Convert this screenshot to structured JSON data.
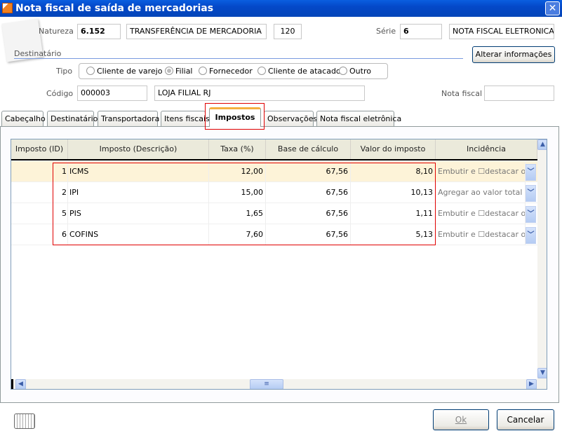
{
  "window": {
    "title": "Nota fiscal de saída de mercadorias",
    "close": "✕"
  },
  "header": {
    "natureza_label": "Natureza",
    "natureza_code": "6.152",
    "natureza_desc": "TRANSFERÊNCIA DE MERCADORIA",
    "natureza_num": "120",
    "serie_label": "Série",
    "serie_value": "6",
    "serie_desc": "NOTA FISCAL ELETRONICA",
    "destinatario_label": "Destinatário",
    "alterar_button": "Alterar informações",
    "tipo_label": "Tipo",
    "tipo_options": [
      {
        "label": "Cliente de varejo",
        "selected": false
      },
      {
        "label": "Filial",
        "selected": true
      },
      {
        "label": "Fornecedor",
        "selected": false
      },
      {
        "label": "Cliente de atacado",
        "selected": false
      },
      {
        "label": "Outro",
        "selected": false
      }
    ],
    "codigo_label": "Código",
    "codigo_value": "000003",
    "codigo_desc": "LOJA FILIAL RJ",
    "nota_fiscal_label": "Nota fiscal",
    "nota_fiscal_value": ""
  },
  "tabs": [
    "Cabeçalho",
    "Destinatário",
    "Transportadora",
    "Itens fiscais",
    "Impostos",
    "Observações",
    "Nota fiscal eletrônica"
  ],
  "active_tab": "Impostos",
  "grid": {
    "columns": [
      "Imposto (ID)",
      "Imposto (Descrição)",
      "Taxa (%)",
      "Base de cálculo",
      "Valor do imposto",
      "Incidência"
    ],
    "rows": [
      {
        "id": "1",
        "desc": "ICMS",
        "taxa": "12,00",
        "base": "67,56",
        "valor": "8,10",
        "incidencia": "Embutir e ☐destacar o va"
      },
      {
        "id": "2",
        "desc": "IPI",
        "taxa": "15,00",
        "base": "67,56",
        "valor": "10,13",
        "incidencia": "Agregar ao valor total da"
      },
      {
        "id": "5",
        "desc": "PIS",
        "taxa": "1,65",
        "base": "67,56",
        "valor": "1,11",
        "incidencia": "Embutir e ☐destacar o va"
      },
      {
        "id": "6",
        "desc": "COFINS",
        "taxa": "7,60",
        "base": "67,56",
        "valor": "5,13",
        "incidencia": "Embutir e ☐destacar o va"
      }
    ]
  },
  "footer": {
    "ok": "Ok",
    "cancel": "Cancelar"
  },
  "colors": {
    "title_bar": "#0448c8",
    "selected_row": "#fdf3d8",
    "highlight_box": "#e00000",
    "active_tab_accent": "#f5b040"
  }
}
